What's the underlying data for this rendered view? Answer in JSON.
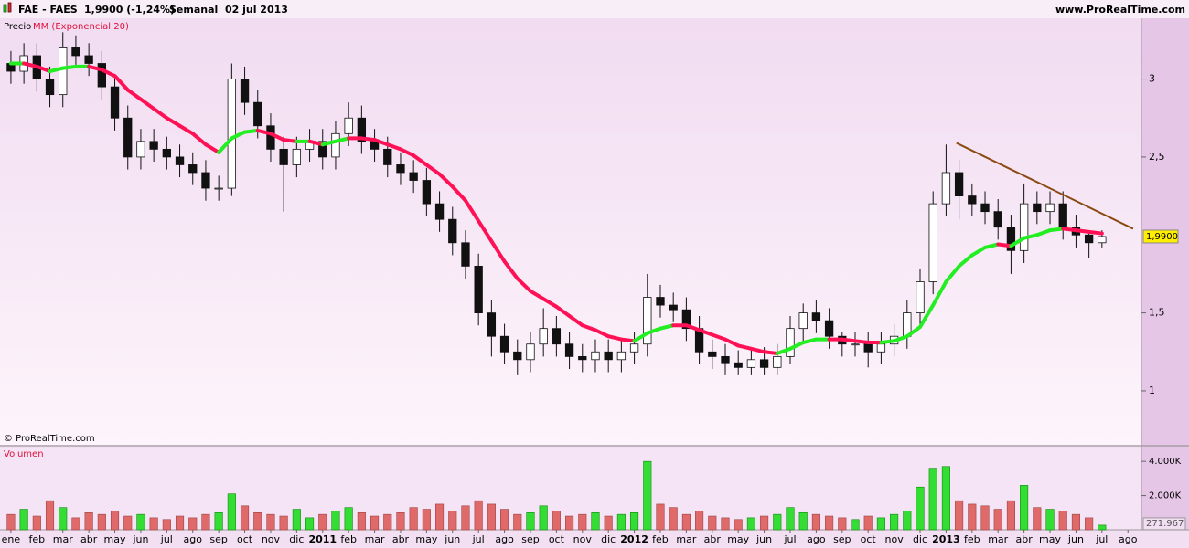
{
  "header": {
    "symbol": "FAE - FAES",
    "quote": "1,9900 (-1,24%)",
    "period": "Semanal  02 jul 2013",
    "site": "www.ProRealTime.com",
    "copyright": "© ProRealTime.com"
  },
  "chart_data": [
    {
      "type": "candlestick",
      "name": "Precio",
      "x": [
        0,
        0.5,
        1,
        1.5,
        2,
        2.5,
        3,
        3.5,
        4,
        4.5,
        5,
        5.5,
        6,
        6.5,
        7,
        7.5,
        8,
        8.5,
        9,
        9.5,
        10,
        10.5,
        11,
        11.5,
        12,
        12.5,
        13,
        13.5,
        14,
        14.5,
        15,
        15.5,
        16,
        16.5,
        17,
        17.5,
        18,
        18.5,
        19,
        19.5,
        20,
        20.5,
        21,
        21.5,
        22,
        22.5,
        23,
        23.5,
        24,
        24.5,
        25,
        25.5,
        26,
        26.5,
        27,
        27.5,
        28,
        28.5,
        29,
        29.5,
        30,
        30.5,
        31,
        31.5,
        32,
        32.5,
        33,
        33.5,
        34,
        34.5,
        35,
        35.5,
        36,
        36.5,
        37,
        37.5,
        38,
        38.5,
        39,
        39.5,
        40,
        40.5,
        41,
        41.5,
        42
      ],
      "open": [
        3.1,
        3.05,
        3.15,
        3.0,
        2.9,
        3.2,
        3.15,
        3.1,
        2.95,
        2.75,
        2.5,
        2.6,
        2.55,
        2.5,
        2.45,
        2.4,
        2.3,
        2.3,
        3.0,
        2.85,
        2.7,
        2.55,
        2.45,
        2.55,
        2.6,
        2.5,
        2.65,
        2.75,
        2.6,
        2.55,
        2.45,
        2.4,
        2.35,
        2.2,
        2.1,
        1.95,
        1.8,
        1.5,
        1.35,
        1.25,
        1.2,
        1.3,
        1.4,
        1.3,
        1.22,
        1.2,
        1.25,
        1.2,
        1.25,
        1.3,
        1.6,
        1.55,
        1.52,
        1.4,
        1.25,
        1.22,
        1.18,
        1.15,
        1.2,
        1.15,
        1.22,
        1.4,
        1.5,
        1.45,
        1.35,
        1.3,
        1.3,
        1.25,
        1.3,
        1.35,
        1.5,
        1.7,
        2.2,
        2.4,
        2.25,
        2.2,
        2.15,
        2.05,
        1.9,
        2.2,
        2.15,
        2.2,
        2.05,
        2.0,
        1.95
      ],
      "high": [
        3.18,
        3.23,
        3.23,
        3.08,
        3.3,
        3.28,
        3.23,
        3.18,
        3.03,
        2.83,
        2.68,
        2.68,
        2.63,
        2.58,
        2.53,
        2.48,
        2.38,
        3.1,
        3.08,
        2.93,
        2.78,
        2.63,
        2.63,
        2.68,
        2.68,
        2.73,
        2.85,
        2.83,
        2.68,
        2.63,
        2.53,
        2.48,
        2.43,
        2.28,
        2.18,
        2.03,
        1.88,
        1.58,
        1.43,
        1.33,
        1.38,
        1.53,
        1.48,
        1.38,
        1.3,
        1.33,
        1.33,
        1.33,
        1.38,
        1.75,
        1.68,
        1.63,
        1.6,
        1.48,
        1.33,
        1.3,
        1.26,
        1.28,
        1.28,
        1.3,
        1.48,
        1.56,
        1.58,
        1.53,
        1.38,
        1.38,
        1.38,
        1.38,
        1.43,
        1.58,
        1.78,
        2.28,
        2.58,
        2.48,
        2.33,
        2.28,
        2.23,
        2.13,
        2.33,
        2.28,
        2.28,
        2.28,
        2.13,
        2.03,
        2.03
      ],
      "low": [
        2.97,
        2.97,
        2.92,
        2.82,
        2.82,
        3.07,
        3.02,
        2.87,
        2.67,
        2.42,
        2.42,
        2.47,
        2.42,
        2.37,
        2.32,
        2.22,
        2.22,
        2.25,
        2.77,
        2.62,
        2.47,
        2.15,
        2.37,
        2.47,
        2.42,
        2.42,
        2.57,
        2.52,
        2.47,
        2.37,
        2.32,
        2.27,
        2.12,
        2.02,
        1.87,
        1.72,
        1.42,
        1.22,
        1.17,
        1.1,
        1.12,
        1.22,
        1.22,
        1.14,
        1.12,
        1.12,
        1.12,
        1.12,
        1.17,
        1.22,
        1.47,
        1.44,
        1.32,
        1.17,
        1.14,
        1.1,
        1.1,
        1.1,
        1.1,
        1.1,
        1.17,
        1.32,
        1.37,
        1.27,
        1.22,
        1.22,
        1.15,
        1.17,
        1.22,
        1.27,
        1.42,
        1.62,
        2.12,
        2.1,
        2.12,
        2.07,
        1.97,
        1.75,
        1.82,
        2.07,
        2.07,
        1.97,
        1.92,
        1.85,
        1.92
      ],
      "close": [
        3.05,
        3.15,
        3.0,
        2.9,
        3.2,
        3.15,
        3.1,
        2.95,
        2.75,
        2.5,
        2.6,
        2.55,
        2.5,
        2.45,
        2.4,
        2.3,
        2.3,
        3.0,
        2.85,
        2.7,
        2.55,
        2.45,
        2.55,
        2.6,
        2.5,
        2.65,
        2.75,
        2.6,
        2.55,
        2.45,
        2.4,
        2.35,
        2.2,
        2.1,
        1.95,
        1.8,
        1.5,
        1.35,
        1.25,
        1.2,
        1.3,
        1.4,
        1.3,
        1.22,
        1.2,
        1.25,
        1.2,
        1.25,
        1.3,
        1.6,
        1.55,
        1.52,
        1.4,
        1.25,
        1.22,
        1.18,
        1.15,
        1.2,
        1.15,
        1.22,
        1.4,
        1.5,
        1.45,
        1.35,
        1.3,
        1.3,
        1.25,
        1.3,
        1.35,
        1.5,
        1.7,
        2.2,
        2.4,
        2.25,
        2.2,
        2.15,
        2.05,
        1.9,
        2.2,
        2.15,
        2.2,
        2.05,
        2.0,
        1.95,
        1.99
      ],
      "up_color": "#ffffff",
      "down_color": "#111111",
      "ema": {
        "name": "MM (Exponencial 20)",
        "up_color": "#22ee22",
        "down_color": "#ff1155",
        "values": [
          3.1,
          3.1,
          3.08,
          3.05,
          3.07,
          3.08,
          3.08,
          3.06,
          3.02,
          2.93,
          2.87,
          2.81,
          2.75,
          2.7,
          2.65,
          2.58,
          2.53,
          2.62,
          2.66,
          2.67,
          2.65,
          2.61,
          2.6,
          2.6,
          2.58,
          2.6,
          2.62,
          2.62,
          2.61,
          2.58,
          2.55,
          2.51,
          2.45,
          2.39,
          2.31,
          2.22,
          2.09,
          1.96,
          1.83,
          1.72,
          1.64,
          1.59,
          1.54,
          1.48,
          1.42,
          1.39,
          1.35,
          1.33,
          1.32,
          1.37,
          1.4,
          1.42,
          1.42,
          1.39,
          1.36,
          1.33,
          1.29,
          1.27,
          1.25,
          1.24,
          1.27,
          1.31,
          1.33,
          1.33,
          1.33,
          1.32,
          1.31,
          1.31,
          1.32,
          1.35,
          1.41,
          1.55,
          1.7,
          1.8,
          1.87,
          1.92,
          1.94,
          1.93,
          1.98,
          2.0,
          2.03,
          2.04,
          2.03,
          2.02,
          2.01
        ]
      },
      "trendline": {
        "x": [
          36.4,
          43.2
        ],
        "y": [
          2.59,
          2.04
        ],
        "color": "#8b4a14"
      },
      "last_price": {
        "value": 1.99,
        "label": "1,9900"
      },
      "xlim": [
        -0.42,
        43.52
      ],
      "ylim": [
        0.654,
        3.39
      ],
      "yticks": [
        1,
        {
          "value": 1.5,
          "label": "1,5"
        },
        {
          "value": 2.5,
          "label": "2,5"
        },
        3
      ],
      "xticks": [
        {
          "value": 0,
          "label": "ene"
        },
        {
          "value": 1,
          "label": "feb"
        },
        {
          "value": 2,
          "label": "mar"
        },
        {
          "value": 3,
          "label": "abr"
        },
        {
          "value": 4,
          "label": "may"
        },
        {
          "value": 5,
          "label": "jun"
        },
        {
          "value": 6,
          "label": "jul"
        },
        {
          "value": 7,
          "label": "ago"
        },
        {
          "value": 8,
          "label": "sep"
        },
        {
          "value": 9,
          "label": "oct"
        },
        {
          "value": 10,
          "label": "nov"
        },
        {
          "value": 11,
          "label": "dic"
        },
        {
          "value": 12,
          "label": "2011"
        },
        {
          "value": 13,
          "label": "feb"
        },
        {
          "value": 14,
          "label": "mar"
        },
        {
          "value": 15,
          "label": "abr"
        },
        {
          "value": 16,
          "label": "may"
        },
        {
          "value": 17,
          "label": "jun"
        },
        {
          "value": 18,
          "label": "jul"
        },
        {
          "value": 19,
          "label": "ago"
        },
        {
          "value": 20,
          "label": "sep"
        },
        {
          "value": 21,
          "label": "oct"
        },
        {
          "value": 22,
          "label": "nov"
        },
        {
          "value": 23,
          "label": "dic"
        },
        {
          "value": 24,
          "label": "2012"
        },
        {
          "value": 25,
          "label": "feb"
        },
        {
          "value": 26,
          "label": "mar"
        },
        {
          "value": 27,
          "label": "abr"
        },
        {
          "value": 28,
          "label": "may"
        },
        {
          "value": 29,
          "label": "jun"
        },
        {
          "value": 30,
          "label": "jul"
        },
        {
          "value": 31,
          "label": "ago"
        },
        {
          "value": 32,
          "label": "sep"
        },
        {
          "value": 33,
          "label": "oct"
        },
        {
          "value": 34,
          "label": "nov"
        },
        {
          "value": 35,
          "label": "dic"
        },
        {
          "value": 36,
          "label": "2013"
        },
        {
          "value": 37,
          "label": "feb"
        },
        {
          "value": 38,
          "label": "mar"
        },
        {
          "value": 39,
          "label": "abr"
        },
        {
          "value": 40,
          "label": "may"
        },
        {
          "value": 41,
          "label": "jun"
        },
        {
          "value": 42,
          "label": "jul"
        },
        {
          "value": 43,
          "label": "ago"
        }
      ]
    },
    {
      "type": "bar",
      "name": "Volumen",
      "up_color": "#33dd33",
      "down_color": "#e06a6a",
      "values": [
        900000,
        1200000,
        800000,
        1700000,
        1300000,
        700000,
        1000000,
        900000,
        1100000,
        800000,
        900000,
        700000,
        600000,
        800000,
        700000,
        900000,
        1000000,
        2100000,
        1400000,
        1000000,
        900000,
        800000,
        1200000,
        700000,
        900000,
        1100000,
        1300000,
        1000000,
        800000,
        900000,
        1000000,
        1300000,
        1200000,
        1500000,
        1100000,
        1400000,
        1700000,
        1500000,
        1200000,
        900000,
        1000000,
        1400000,
        1100000,
        800000,
        900000,
        1000000,
        800000,
        900000,
        1000000,
        4000000,
        1500000,
        1300000,
        900000,
        1100000,
        800000,
        700000,
        600000,
        700000,
        800000,
        900000,
        1300000,
        1000000,
        900000,
        800000,
        700000,
        600000,
        800000,
        700000,
        900000,
        1100000,
        2500000,
        3600000,
        3700000,
        1700000,
        1500000,
        1400000,
        1200000,
        1700000,
        2600000,
        1300000,
        1200000,
        1100000,
        900000,
        700000,
        271967
      ],
      "last_volume": {
        "value": 271967,
        "label": "271.967"
      },
      "ylim": [
        0,
        4810000
      ],
      "yticks": [
        {
          "value": 2000000,
          "label": "2.000K"
        },
        {
          "value": 4000000,
          "label": "4.000K"
        }
      ]
    }
  ]
}
